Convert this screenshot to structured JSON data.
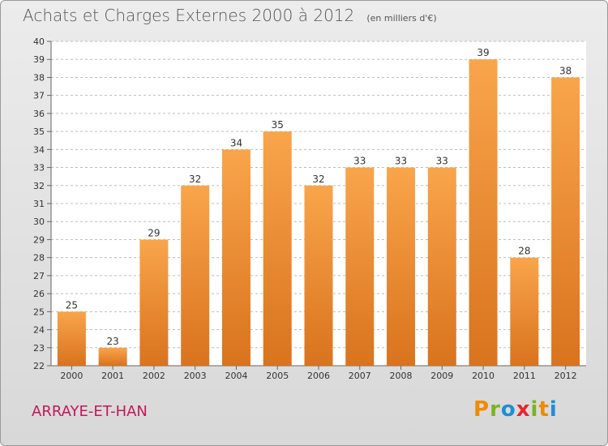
{
  "title": "Achats et Charges Externes 2000 à 2012",
  "subtitle": "(en milliers d'€)",
  "commune": "ARRAYE-ET-HAN",
  "logo": {
    "letters": [
      "P",
      "r",
      "o",
      "x",
      "i",
      "t",
      "i"
    ],
    "colors": [
      "#f08a00",
      "#7ab51d",
      "#1d8fd6",
      "#e5262e",
      "#7ab51d",
      "#f08a00",
      "#1d8fd6"
    ]
  },
  "colors": {
    "bar_light": "#f9a54b",
    "bar_dark": "#d9731e",
    "grid": "#bdbdbd",
    "text": "#333333",
    "brand_red": "#c2185b"
  },
  "chart_data": {
    "type": "bar",
    "title": "Achats et Charges Externes 2000 à 2012",
    "subtitle": "(en milliers d'€)",
    "categories": [
      "2000",
      "2001",
      "2002",
      "2003",
      "2004",
      "2005",
      "2006",
      "2007",
      "2008",
      "2009",
      "2010",
      "2011",
      "2012"
    ],
    "values": [
      25,
      23,
      29,
      32,
      34,
      35,
      32,
      33,
      33,
      33,
      39,
      28,
      38
    ],
    "ylim": [
      22,
      40
    ],
    "yticks": [
      22,
      23,
      24,
      25,
      26,
      27,
      28,
      29,
      30,
      31,
      32,
      33,
      34,
      35,
      36,
      37,
      38,
      39,
      40
    ],
    "grid": true,
    "data_labels": true
  }
}
